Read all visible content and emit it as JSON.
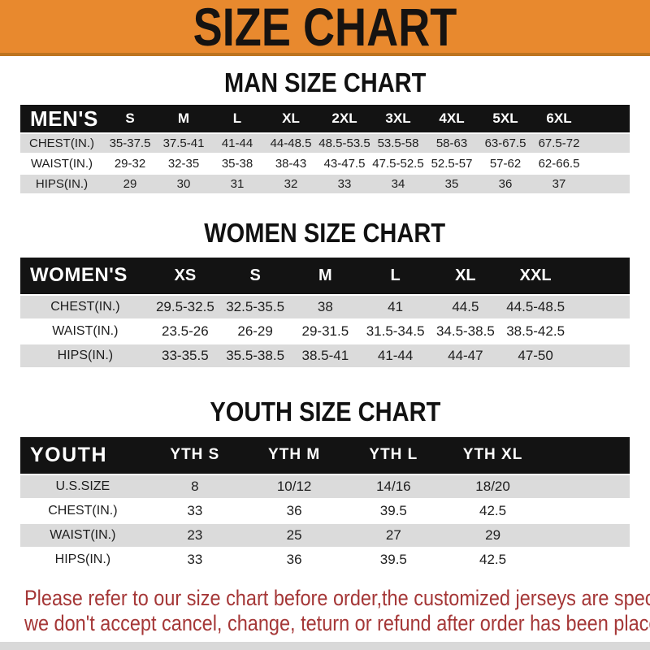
{
  "banner": {
    "title": "SIZE CHART",
    "bg_color": "#E8892E",
    "border_color": "#BD741F",
    "text_color": "#161311"
  },
  "sections": [
    {
      "id": "men",
      "title": "MAN SIZE CHART",
      "table": {
        "header": [
          "MEN'S",
          "S",
          "M",
          "L",
          "XL",
          "2XL",
          "3XL",
          "4XL",
          "5XL",
          "6XL"
        ],
        "rows": [
          [
            "CHEST(IN.)",
            "35-37.5",
            "37.5-41",
            "41-44",
            "44-48.5",
            "48.5-53.5",
            "53.5-58",
            "58-63",
            "63-67.5",
            "67.5-72"
          ],
          [
            "WAIST(IN.)",
            "29-32",
            "32-35",
            "35-38",
            "38-43",
            "43-47.5",
            "47.5-52.5",
            "52.5-57",
            "57-62",
            "62-66.5"
          ],
          [
            "HIPS(IN.)",
            "29",
            "30",
            "31",
            "32",
            "33",
            "34",
            "35",
            "36",
            "37"
          ]
        ]
      }
    },
    {
      "id": "women",
      "title": "WOMEN SIZE CHART",
      "table": {
        "header": [
          "WOMEN'S",
          "XS",
          "S",
          "M",
          "L",
          "XL",
          "XXL"
        ],
        "rows": [
          [
            "CHEST(IN.)",
            "29.5-32.5",
            "32.5-35.5",
            "38",
            "41",
            "44.5",
            "44.5-48.5"
          ],
          [
            "WAIST(IN.)",
            "23.5-26",
            "26-29",
            "29-31.5",
            "31.5-34.5",
            "34.5-38.5",
            "38.5-42.5"
          ],
          [
            "HIPS(IN.)",
            "33-35.5",
            "35.5-38.5",
            "38.5-41",
            "41-44",
            "44-47",
            "47-50"
          ]
        ]
      }
    },
    {
      "id": "youth",
      "title": "YOUTH SIZE CHART",
      "table": {
        "header": [
          "YOUTH",
          "YTH S",
          "YTH M",
          "YTH L",
          "YTH XL"
        ],
        "rows": [
          [
            "U.S.SIZE",
            "8",
            "10/12",
            "14/16",
            "18/20"
          ],
          [
            "CHEST(IN.)",
            "33",
            "36",
            "39.5",
            "42.5"
          ],
          [
            "WAIST(IN.)",
            "23",
            "25",
            "27",
            "29"
          ],
          [
            "HIPS(IN.)",
            "33",
            "36",
            "39.5",
            "42.5"
          ]
        ]
      }
    }
  ],
  "footer": {
    "line1": "Please refer to our size chart before order,the customized jerseys are special products,",
    "line2": "we don't accept cancel, change, teturn or refund after order has been placed!",
    "text_color": "#A53737"
  },
  "colors": {
    "table_header_bg": "#131313",
    "table_header_text": "#ffffff",
    "row_stripe_gray": "#DBDBDB",
    "row_stripe_white": "#ffffff"
  }
}
